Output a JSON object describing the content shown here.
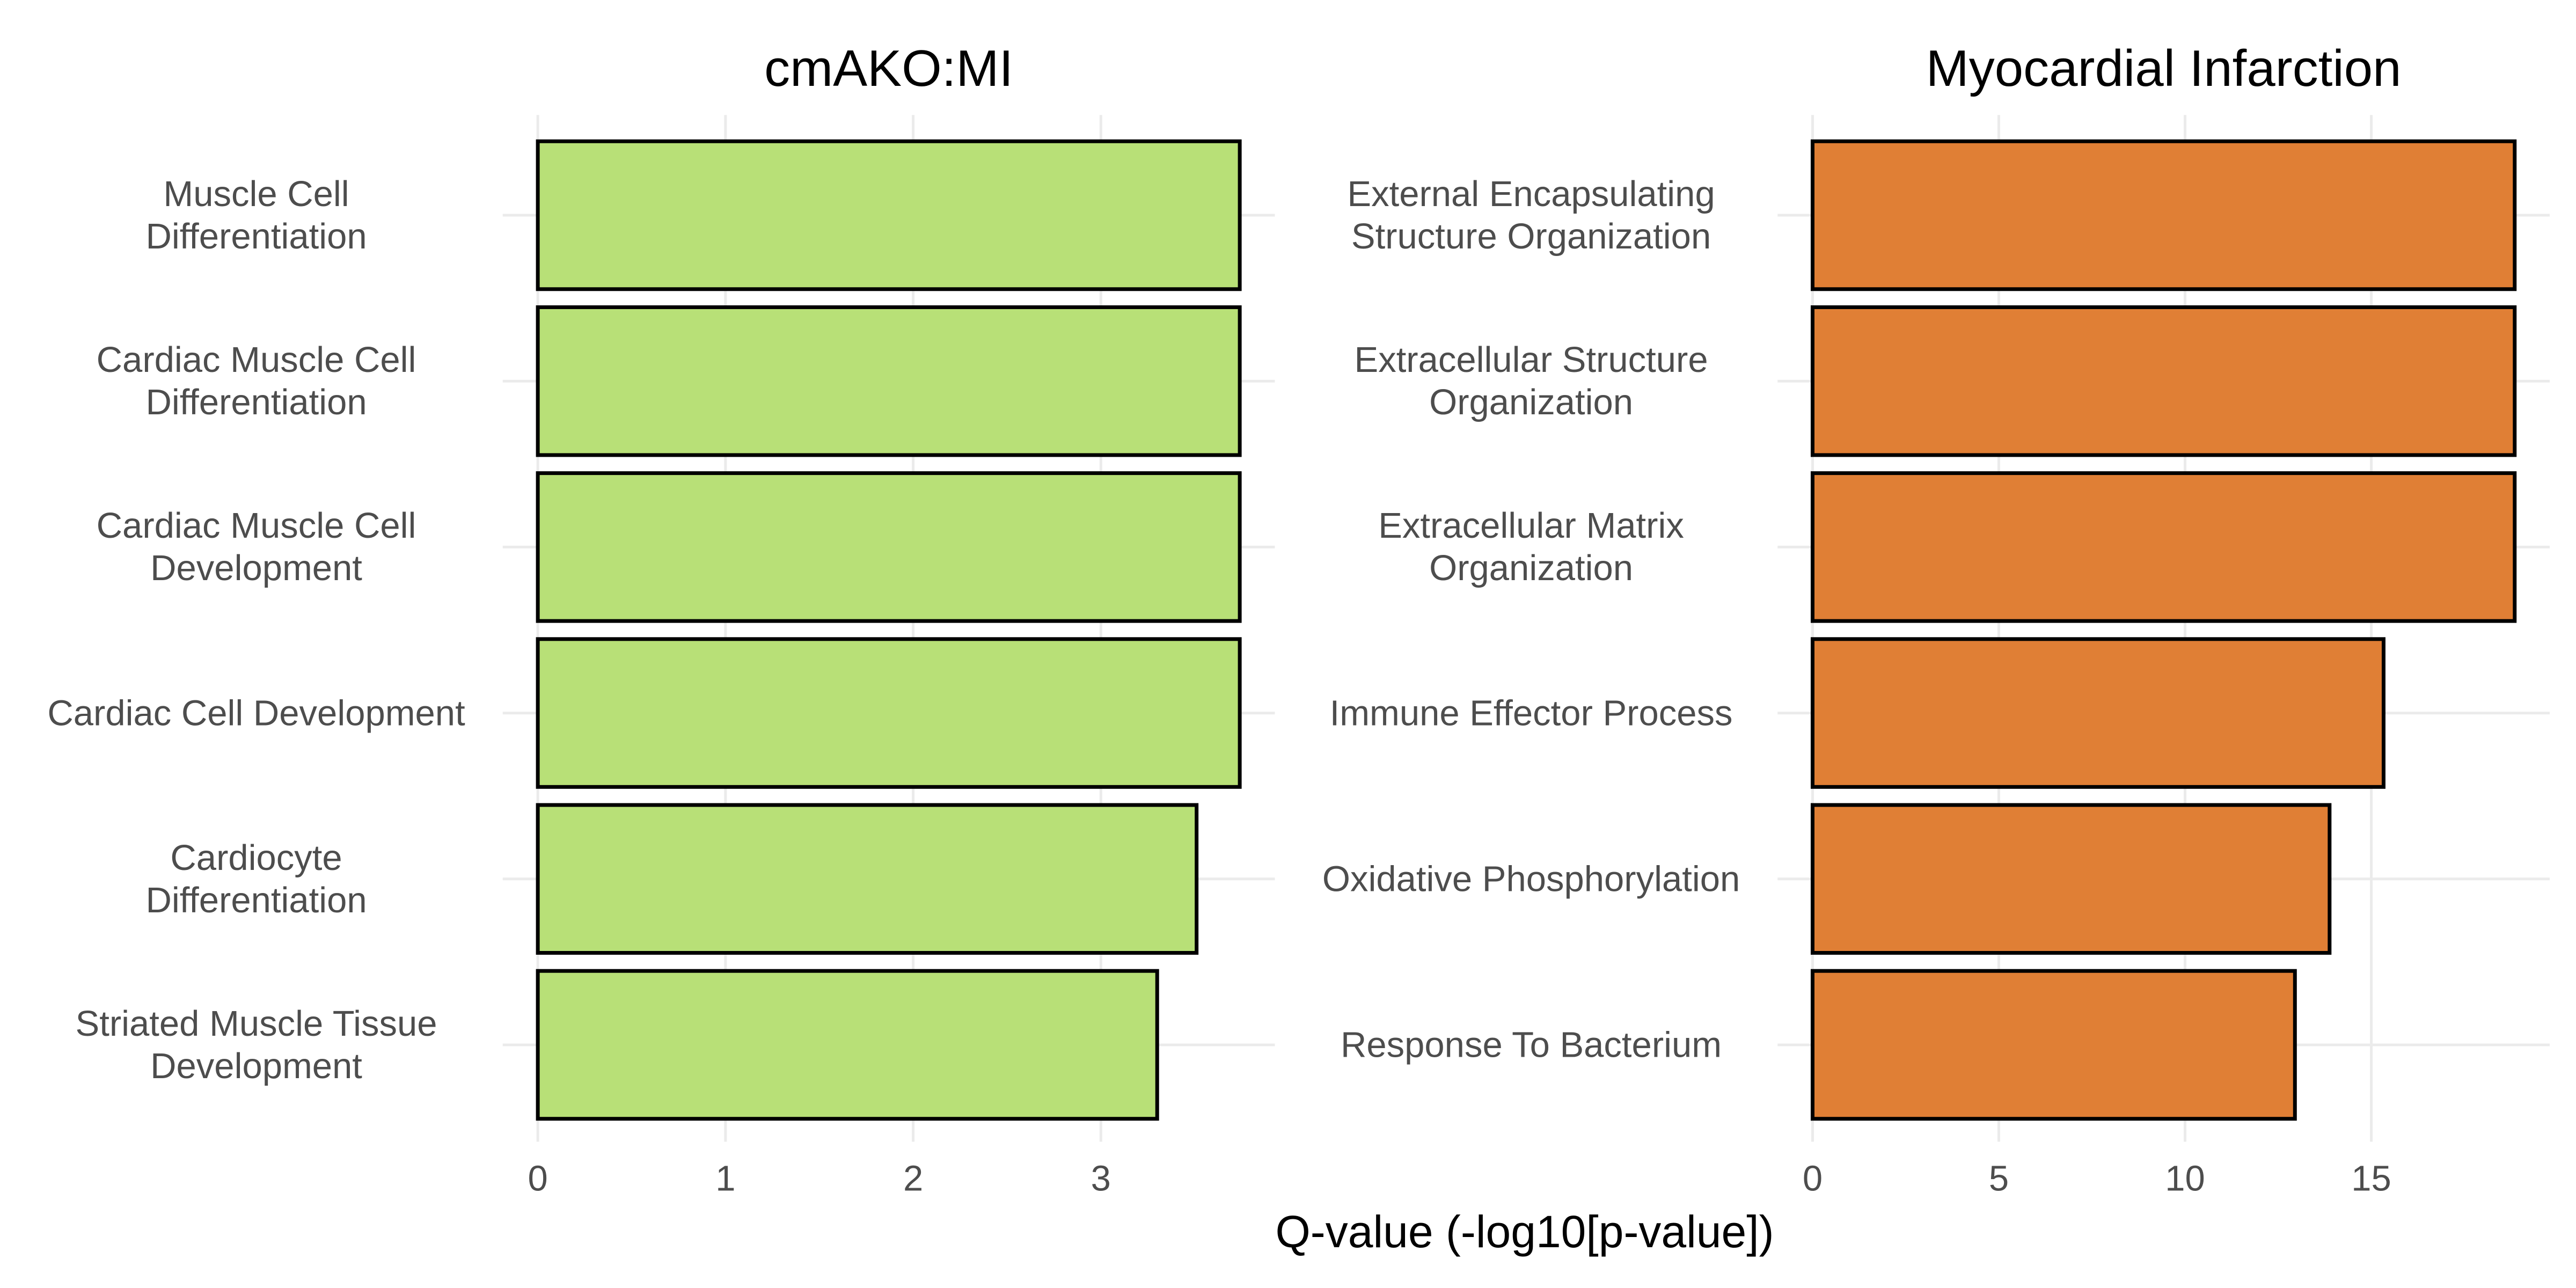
{
  "chart_data": [
    {
      "type": "barh",
      "title": "cmAKO:MI",
      "color": "#b8e077",
      "categories": [
        "Muscle Cell\nDifferentiation",
        "Cardiac Muscle Cell\nDifferentiation",
        "Cardiac Muscle Cell\nDevelopment",
        "Cardiac Cell Development",
        "Cardiocyte\nDifferentiation",
        "Striated Muscle Tissue\nDevelopment"
      ],
      "values": [
        3.74,
        3.74,
        3.74,
        3.74,
        3.51,
        3.3
      ],
      "xlim": [
        -0.187,
        3.927
      ],
      "xticks": [
        0,
        1,
        2,
        3
      ],
      "grid": true
    },
    {
      "type": "barh",
      "title": "Myocardial Infarction",
      "color": "#e07f35",
      "categories": [
        "External Encapsulating\nStructure Organization",
        "Extracellular Structure\nOrganization",
        "Extracellular Matrix\nOrganization",
        "Immune Effector Process",
        "Oxidative Phosphorylation",
        "Response To Bacterium"
      ],
      "values": [
        18.85,
        18.85,
        18.85,
        15.33,
        13.88,
        12.95
      ],
      "xlim": [
        -0.94,
        19.79
      ],
      "xticks": [
        0,
        5,
        10,
        15
      ],
      "grid": true
    }
  ],
  "x_label": "Q-value (-log10[p-value])"
}
